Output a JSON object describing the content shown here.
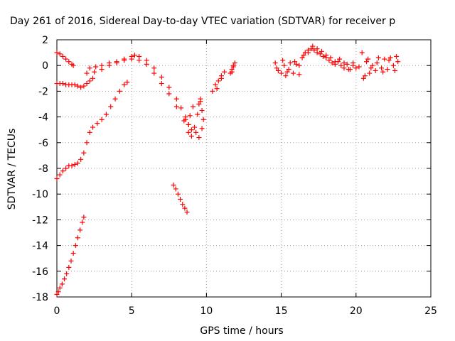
{
  "chart_data": {
    "type": "scatter",
    "title": "Day 261 of 2016, Sidereal Day-to-day VTEC variation (SDTVAR) for receiver p",
    "xlabel": "GPS time / hours",
    "ylabel": "SDTVAR / TECUs",
    "xlim": [
      0,
      25
    ],
    "ylim": [
      -18,
      2
    ],
    "xticks": [
      "0",
      "5",
      "10",
      "15",
      "20",
      "25"
    ],
    "yticks": [
      "2",
      "0",
      "-2",
      "-4",
      "-6",
      "-8",
      "-10",
      "-12",
      "-14",
      "-16",
      "-18"
    ],
    "grid": true,
    "marker": "+",
    "series_color": "#ff0000",
    "series": [
      {
        "x": [
          0.0,
          0.2,
          0.4,
          0.6,
          0.8,
          1.0,
          1.1
        ],
        "y": [
          1.0,
          0.9,
          0.7,
          0.5,
          0.3,
          0.1,
          0.0
        ]
      },
      {
        "x": [
          0.0,
          0.2,
          0.4,
          0.6,
          0.8,
          1.0,
          1.2,
          1.4,
          1.6,
          1.8,
          2.0,
          2.2,
          2.4
        ],
        "y": [
          -1.4,
          -1.4,
          -1.4,
          -1.5,
          -1.5,
          -1.5,
          -1.5,
          -1.6,
          -1.7,
          -1.6,
          -1.4,
          -1.2,
          -1.0
        ]
      },
      {
        "x": [
          2.0,
          2.5,
          3.0,
          3.5,
          4.0,
          4.5,
          5.0,
          5.2,
          5.5,
          6.0,
          6.5,
          7.0,
          7.5,
          8.0,
          8.3,
          8.6,
          8.8,
          9.0
        ],
        "y": [
          -0.6,
          -0.5,
          -0.3,
          0.0,
          0.2,
          0.5,
          0.7,
          0.8,
          0.7,
          0.4,
          -0.2,
          -0.9,
          -1.7,
          -2.6,
          -3.3,
          -4.0,
          -4.6,
          -5.0
        ]
      },
      {
        "x": [
          2.2,
          2.6,
          3.0,
          3.5,
          4.0,
          4.5,
          5.0,
          5.5,
          6.0,
          6.5,
          7.0,
          7.5,
          8.0,
          8.5,
          8.8
        ],
        "y": [
          -0.2,
          -0.1,
          0.0,
          0.2,
          0.3,
          0.4,
          0.5,
          0.4,
          0.1,
          -0.6,
          -1.4,
          -2.2,
          -3.2,
          -4.3,
          -5.2
        ]
      },
      {
        "x": [
          0.0,
          0.2,
          0.4,
          0.6,
          0.8,
          1.0,
          1.2,
          1.4,
          1.6,
          1.8,
          2.0,
          2.2,
          2.4,
          2.7,
          3.0,
          3.3,
          3.6,
          3.9,
          4.2,
          4.5,
          4.7
        ],
        "y": [
          -8.8,
          -8.5,
          -8.2,
          -8.0,
          -7.8,
          -7.8,
          -7.7,
          -7.6,
          -7.3,
          -6.8,
          -6.0,
          -5.2,
          -4.8,
          -4.5,
          -4.2,
          -3.8,
          -3.2,
          -2.6,
          -2.0,
          -1.5,
          -1.3
        ]
      },
      {
        "x": [
          0.0,
          0.1,
          0.2,
          0.35,
          0.5,
          0.65,
          0.8,
          0.95,
          1.1,
          1.25,
          1.4,
          1.55,
          1.7,
          1.8
        ],
        "y": [
          -17.8,
          -17.6,
          -17.3,
          -17.0,
          -16.6,
          -16.2,
          -15.7,
          -15.2,
          -14.6,
          -14.0,
          -13.4,
          -12.8,
          -12.2,
          -11.8
        ]
      },
      {
        "x": [
          7.8,
          7.95,
          8.1,
          8.25,
          8.4,
          8.55,
          8.7
        ],
        "y": [
          -9.3,
          -9.6,
          -10.0,
          -10.4,
          -10.8,
          -11.1,
          -11.4
        ]
      },
      {
        "x": [
          8.6,
          8.8,
          9.0,
          9.2,
          9.4,
          9.5,
          9.6,
          9.7,
          9.8,
          9.3,
          9.1,
          9.5,
          9.7,
          8.9,
          9.6
        ],
        "y": [
          -4.2,
          -4.6,
          -5.5,
          -4.8,
          -3.8,
          -3.0,
          -2.8,
          -3.5,
          -4.2,
          -5.2,
          -3.2,
          -5.6,
          -4.9,
          -3.9,
          -2.6
        ]
      },
      {
        "x": [
          10.4,
          10.6,
          10.8,
          11.0,
          11.2,
          10.7,
          11.0
        ],
        "y": [
          -2.0,
          -1.5,
          -1.2,
          -0.8,
          -0.5,
          -1.8,
          -1.0
        ]
      },
      {
        "x": [
          11.6,
          11.7,
          11.8,
          11.9,
          11.7,
          11.8
        ],
        "y": [
          -0.6,
          -0.3,
          0.0,
          0.2,
          -0.5,
          -0.1
        ]
      },
      {
        "x": [
          14.6,
          14.8,
          15.0,
          15.2,
          15.4,
          15.6,
          15.8,
          16.0,
          16.2,
          15.1,
          15.5,
          15.9,
          14.7,
          15.3
        ],
        "y": [
          0.2,
          -0.4,
          -0.6,
          0.0,
          -0.5,
          0.2,
          -0.6,
          0.1,
          -0.7,
          0.4,
          -0.3,
          0.3,
          -0.2,
          -0.8
        ]
      },
      {
        "x": [
          16.2,
          16.4,
          16.6,
          16.8,
          17.0,
          17.2,
          17.4,
          17.6,
          17.8,
          18.0,
          18.2,
          18.4,
          18.6,
          18.8,
          19.0,
          19.2,
          19.4,
          19.6,
          19.8,
          20.0,
          20.2
        ],
        "y": [
          0.0,
          0.6,
          1.0,
          1.2,
          1.3,
          1.2,
          1.0,
          0.9,
          0.7,
          0.6,
          0.4,
          0.2,
          0.1,
          0.3,
          0.0,
          -0.2,
          0.1,
          -0.3,
          0.0,
          -0.2,
          -0.1
        ]
      },
      {
        "x": [
          16.5,
          16.8,
          17.1,
          17.4,
          17.7,
          18.0,
          18.3,
          18.6,
          18.9,
          19.2,
          19.5,
          19.8
        ],
        "y": [
          0.8,
          1.0,
          1.5,
          1.3,
          1.1,
          0.8,
          0.6,
          0.3,
          0.5,
          0.2,
          -0.3,
          0.2
        ]
      },
      {
        "x": [
          20.4,
          20.5,
          20.7,
          20.9,
          21.1,
          21.3,
          21.5,
          21.7,
          21.9,
          22.1,
          22.3,
          22.5,
          22.7,
          22.8,
          20.6,
          20.8,
          21.0,
          21.4,
          21.8,
          22.2,
          22.6
        ],
        "y": [
          1.0,
          -1.0,
          0.3,
          -0.6,
          0.0,
          -0.4,
          0.6,
          -0.2,
          0.5,
          -0.3,
          0.6,
          0.0,
          0.7,
          0.3,
          -0.8,
          0.5,
          -0.2,
          0.2,
          -0.5,
          0.4,
          -0.4
        ]
      }
    ]
  }
}
